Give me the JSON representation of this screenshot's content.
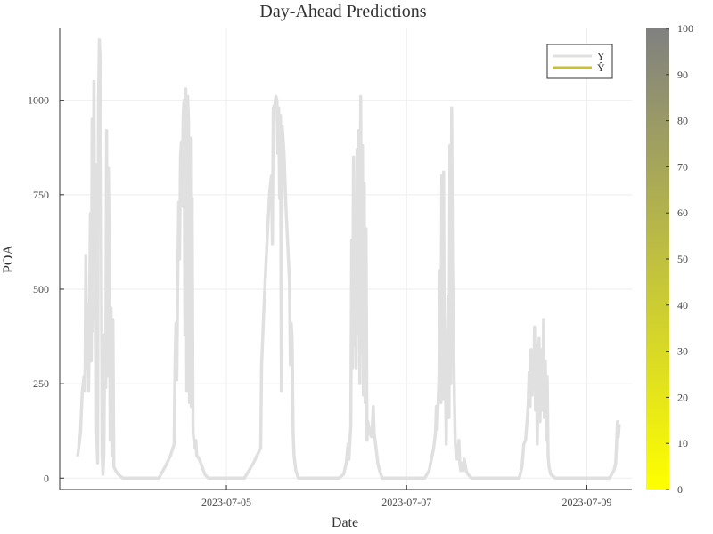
{
  "chart_data": {
    "type": "line",
    "title": "Day-Ahead Predictions",
    "xlabel": "Date",
    "ylabel": "POA",
    "x_tick_labels": [
      "2023-07-05",
      "2023-07-07",
      "2023-07-09"
    ],
    "y_tick_labels": [
      "0",
      "250",
      "500",
      "750",
      "1000"
    ],
    "ylim": [
      -30,
      1190
    ],
    "xlim_days_from_2023_07_04": [
      -0.85,
      5.5
    ],
    "grid": true,
    "legend": {
      "position": "top-right",
      "entries": [
        "Y",
        "Ŷ"
      ]
    },
    "colorbar": {
      "min": 0,
      "max": 100,
      "ticks": [
        "0",
        "10",
        "20",
        "30",
        "40",
        "50",
        "60",
        "70",
        "80",
        "90",
        "100"
      ],
      "low_color": "#ffff00",
      "high_color": "#808080"
    },
    "series": [
      {
        "name": "Y",
        "color": "#e0e0e0",
        "points": [
          [
            -0.65,
            60
          ],
          [
            -0.62,
            120
          ],
          [
            -0.6,
            230
          ],
          [
            -0.58,
            270
          ],
          [
            -0.57,
            230
          ],
          [
            -0.56,
            590
          ],
          [
            -0.55,
            290
          ],
          [
            -0.54,
            460
          ],
          [
            -0.53,
            230
          ],
          [
            -0.52,
            430
          ],
          [
            -0.51,
            700
          ],
          [
            -0.5,
            310
          ],
          [
            -0.49,
            950
          ],
          [
            -0.48,
            390
          ],
          [
            -0.47,
            1050
          ],
          [
            -0.46,
            500
          ],
          [
            -0.45,
            830
          ],
          [
            -0.44,
            120
          ],
          [
            -0.43,
            40
          ],
          [
            -0.42,
            1000
          ],
          [
            -0.41,
            1160
          ],
          [
            -0.4,
            1100
          ],
          [
            -0.39,
            800
          ],
          [
            -0.38,
            60
          ],
          [
            -0.37,
            10
          ],
          [
            -0.36,
            60
          ],
          [
            -0.35,
            380
          ],
          [
            -0.34,
            240
          ],
          [
            -0.33,
            920
          ],
          [
            -0.32,
            270
          ],
          [
            -0.31,
            820
          ],
          [
            -0.3,
            640
          ],
          [
            -0.29,
            100
          ],
          [
            -0.28,
            450
          ],
          [
            -0.27,
            60
          ],
          [
            -0.26,
            420
          ],
          [
            -0.25,
            30
          ],
          [
            -0.23,
            20
          ],
          [
            -0.2,
            10
          ],
          [
            -0.15,
            0
          ],
          [
            0.25,
            0
          ],
          [
            0.32,
            30
          ],
          [
            0.38,
            60
          ],
          [
            0.4,
            75
          ],
          [
            0.42,
            90
          ],
          [
            0.43,
            300
          ],
          [
            0.44,
            410
          ],
          [
            0.45,
            260
          ],
          [
            0.46,
            520
          ],
          [
            0.47,
            730
          ],
          [
            0.48,
            580
          ],
          [
            0.49,
            850
          ],
          [
            0.5,
            890
          ],
          [
            0.51,
            720
          ],
          [
            0.52,
            960
          ],
          [
            0.53,
            1000
          ],
          [
            0.54,
            380
          ],
          [
            0.55,
            1030
          ],
          [
            0.56,
            230
          ],
          [
            0.57,
            1010
          ],
          [
            0.58,
            940
          ],
          [
            0.59,
            200
          ],
          [
            0.6,
            900
          ],
          [
            0.61,
            190
          ],
          [
            0.62,
            740
          ],
          [
            0.63,
            120
          ],
          [
            0.64,
            100
          ],
          [
            0.65,
            80
          ],
          [
            0.66,
            100
          ],
          [
            0.67,
            60
          ],
          [
            0.7,
            50
          ],
          [
            0.73,
            30
          ],
          [
            0.76,
            10
          ],
          [
            0.8,
            0
          ],
          [
            1.2,
            0
          ],
          [
            1.3,
            40
          ],
          [
            1.38,
            80
          ],
          [
            1.39,
            300
          ],
          [
            1.42,
            470
          ],
          [
            1.45,
            620
          ],
          [
            1.48,
            760
          ],
          [
            1.5,
            800
          ],
          [
            1.51,
            620
          ],
          [
            1.52,
            980
          ],
          [
            1.54,
            990
          ],
          [
            1.55,
            1010
          ],
          [
            1.56,
            1000
          ],
          [
            1.57,
            860
          ],
          [
            1.58,
            980
          ],
          [
            1.59,
            740
          ],
          [
            1.6,
            960
          ],
          [
            1.61,
            230
          ],
          [
            1.62,
            930
          ],
          [
            1.64,
            860
          ],
          [
            1.66,
            720
          ],
          [
            1.68,
            620
          ],
          [
            1.7,
            520
          ],
          [
            1.71,
            300
          ],
          [
            1.72,
            410
          ],
          [
            1.73,
            370
          ],
          [
            1.74,
            120
          ],
          [
            1.75,
            60
          ],
          [
            1.77,
            20
          ],
          [
            1.8,
            0
          ],
          [
            2.25,
            0
          ],
          [
            2.3,
            10
          ],
          [
            2.33,
            40
          ],
          [
            2.35,
            90
          ],
          [
            2.36,
            50
          ],
          [
            2.38,
            140
          ],
          [
            2.39,
            630
          ],
          [
            2.4,
            290
          ],
          [
            2.41,
            850
          ],
          [
            2.42,
            350
          ],
          [
            2.43,
            730
          ],
          [
            2.44,
            290
          ],
          [
            2.45,
            870
          ],
          [
            2.46,
            380
          ],
          [
            2.47,
            920
          ],
          [
            2.48,
            250
          ],
          [
            2.49,
            1010
          ],
          [
            2.5,
            330
          ],
          [
            2.51,
            880
          ],
          [
            2.52,
            220
          ],
          [
            2.53,
            780
          ],
          [
            2.54,
            200
          ],
          [
            2.55,
            660
          ],
          [
            2.56,
            100
          ],
          [
            2.57,
            150
          ],
          [
            2.59,
            120
          ],
          [
            2.61,
            110
          ],
          [
            2.62,
            140
          ],
          [
            2.63,
            190
          ],
          [
            2.64,
            120
          ],
          [
            2.66,
            80
          ],
          [
            2.68,
            40
          ],
          [
            2.7,
            20
          ],
          [
            2.73,
            0
          ],
          [
            3.2,
            0
          ],
          [
            3.25,
            20
          ],
          [
            3.3,
            80
          ],
          [
            3.32,
            120
          ],
          [
            3.33,
            190
          ],
          [
            3.34,
            130
          ],
          [
            3.35,
            200
          ],
          [
            3.36,
            270
          ],
          [
            3.37,
            550
          ],
          [
            3.38,
            200
          ],
          [
            3.39,
            800
          ],
          [
            3.4,
            210
          ],
          [
            3.41,
            810
          ],
          [
            3.42,
            300
          ],
          [
            3.43,
            280
          ],
          [
            3.44,
            90
          ],
          [
            3.45,
            330
          ],
          [
            3.46,
            480
          ],
          [
            3.47,
            160
          ],
          [
            3.48,
            880
          ],
          [
            3.49,
            250
          ],
          [
            3.5,
            980
          ],
          [
            3.51,
            560
          ],
          [
            3.52,
            400
          ],
          [
            3.53,
            220
          ],
          [
            3.54,
            90
          ],
          [
            3.55,
            60
          ],
          [
            3.56,
            50
          ],
          [
            3.58,
            100
          ],
          [
            3.59,
            40
          ],
          [
            3.6,
            20
          ],
          [
            3.62,
            40
          ],
          [
            3.63,
            20
          ],
          [
            3.64,
            50
          ],
          [
            3.66,
            20
          ],
          [
            3.68,
            10
          ],
          [
            3.72,
            0
          ],
          [
            4.25,
            0
          ],
          [
            4.28,
            30
          ],
          [
            4.3,
            90
          ],
          [
            4.32,
            100
          ],
          [
            4.34,
            160
          ],
          [
            4.35,
            200
          ],
          [
            4.36,
            280
          ],
          [
            4.37,
            190
          ],
          [
            4.38,
            340
          ],
          [
            4.39,
            220
          ],
          [
            4.4,
            310
          ],
          [
            4.41,
            250
          ],
          [
            4.42,
            400
          ],
          [
            4.43,
            180
          ],
          [
            4.44,
            350
          ],
          [
            4.45,
            90
          ],
          [
            4.46,
            250
          ],
          [
            4.47,
            370
          ],
          [
            4.48,
            150
          ],
          [
            4.49,
            290
          ],
          [
            4.5,
            340
          ],
          [
            4.51,
            180
          ],
          [
            4.52,
            420
          ],
          [
            4.53,
            160
          ],
          [
            4.54,
            310
          ],
          [
            4.55,
            100
          ],
          [
            4.56,
            270
          ],
          [
            4.57,
            60
          ],
          [
            4.58,
            30
          ],
          [
            4.59,
            20
          ],
          [
            4.6,
            10
          ],
          [
            4.65,
            0
          ],
          [
            5.25,
            0
          ],
          [
            5.3,
            20
          ],
          [
            5.32,
            40
          ],
          [
            5.33,
            90
          ],
          [
            5.34,
            150
          ],
          [
            5.35,
            110
          ],
          [
            5.36,
            140
          ]
        ]
      },
      {
        "name": "Ŷ",
        "color": "#c8c034",
        "points": []
      }
    ]
  }
}
